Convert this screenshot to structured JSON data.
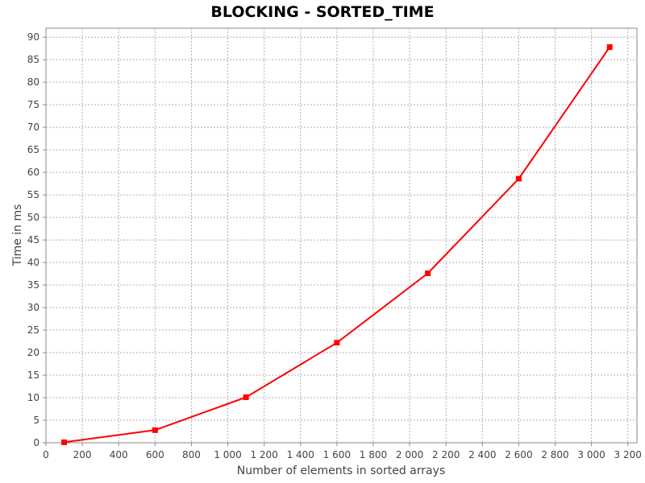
{
  "chart_data": {
    "type": "line",
    "title": "BLOCKING - SORTED_TIME",
    "xlabel": "Number of elements in sorted arrays",
    "ylabel": "Time in ms",
    "xlim": [
      0,
      3250
    ],
    "ylim": [
      0,
      92
    ],
    "xticks": [
      0,
      200,
      400,
      600,
      800,
      1000,
      1200,
      1400,
      1600,
      1800,
      2000,
      2200,
      2400,
      2600,
      2800,
      3000,
      3200
    ],
    "xtick_labels": [
      "0",
      "200",
      "400",
      "600",
      "800",
      "1 000",
      "1 200",
      "1 400",
      "1 600",
      "1 800",
      "2 000",
      "2 200",
      "2 400",
      "2 600",
      "2 800",
      "3 000",
      "3 200"
    ],
    "yticks": [
      0,
      5,
      10,
      15,
      20,
      25,
      30,
      35,
      40,
      45,
      50,
      55,
      60,
      65,
      70,
      75,
      80,
      85,
      90
    ],
    "ytick_labels": [
      "0",
      "5",
      "10",
      "15",
      "20",
      "25",
      "30",
      "35",
      "40",
      "45",
      "50",
      "55",
      "60",
      "65",
      "70",
      "75",
      "80",
      "85",
      "90"
    ],
    "grid": true,
    "legend": "none",
    "series": [
      {
        "color": "#ff0000",
        "x": [
          100,
          600,
          1100,
          1600,
          2100,
          2600,
          3100
        ],
        "y": [
          0.1,
          2.8,
          10.1,
          22.2,
          37.6,
          58.6,
          87.8
        ]
      }
    ]
  }
}
